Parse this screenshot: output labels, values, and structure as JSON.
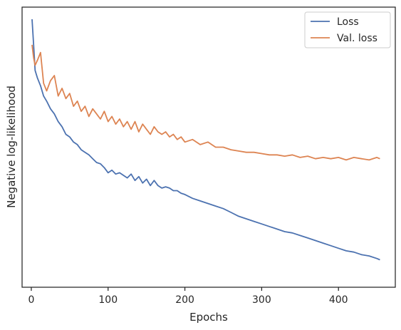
{
  "chart_data": {
    "type": "line",
    "title": "",
    "xlabel": "Epochs",
    "ylabel": "Negative log-likelihood",
    "xlim": [
      -12,
      474
    ],
    "ylim": [
      0,
      1
    ],
    "xticks": [
      0,
      100,
      200,
      300,
      400
    ],
    "yticks_shown": false,
    "grid": false,
    "legend_position": "top-right",
    "colors": {
      "Loss": "#4c72b0",
      "Val. loss": "#dd8452"
    },
    "series": [
      {
        "name": "Loss",
        "x": [
          1,
          3,
          5,
          8,
          12,
          16,
          20,
          25,
          30,
          35,
          40,
          45,
          50,
          55,
          60,
          65,
          70,
          75,
          80,
          85,
          90,
          95,
          100,
          105,
          110,
          115,
          120,
          125,
          130,
          135,
          140,
          145,
          150,
          155,
          160,
          165,
          170,
          175,
          180,
          185,
          190,
          195,
          200,
          210,
          220,
          230,
          240,
          250,
          260,
          270,
          280,
          290,
          300,
          310,
          320,
          330,
          340,
          350,
          360,
          370,
          380,
          390,
          400,
          410,
          420,
          430,
          440,
          450,
          454
        ],
        "y": [
          1.0,
          0.9,
          0.8,
          0.77,
          0.74,
          0.7,
          0.68,
          0.65,
          0.63,
          0.6,
          0.58,
          0.55,
          0.54,
          0.52,
          0.51,
          0.49,
          0.48,
          0.47,
          0.455,
          0.44,
          0.435,
          0.42,
          0.4,
          0.41,
          0.395,
          0.4,
          0.39,
          0.38,
          0.395,
          0.37,
          0.385,
          0.36,
          0.375,
          0.35,
          0.37,
          0.35,
          0.34,
          0.345,
          0.34,
          0.33,
          0.33,
          0.32,
          0.315,
          0.3,
          0.29,
          0.28,
          0.27,
          0.26,
          0.245,
          0.23,
          0.22,
          0.21,
          0.2,
          0.19,
          0.18,
          0.17,
          0.165,
          0.155,
          0.145,
          0.135,
          0.125,
          0.115,
          0.105,
          0.095,
          0.09,
          0.08,
          0.075,
          0.065,
          0.06
        ]
      },
      {
        "name": "Val. loss",
        "x": [
          1,
          3,
          5,
          8,
          12,
          16,
          20,
          25,
          30,
          35,
          40,
          45,
          50,
          55,
          60,
          65,
          70,
          75,
          80,
          85,
          90,
          95,
          100,
          105,
          110,
          115,
          120,
          125,
          130,
          135,
          140,
          145,
          150,
          155,
          160,
          165,
          170,
          175,
          180,
          185,
          190,
          195,
          200,
          210,
          220,
          230,
          240,
          250,
          260,
          270,
          280,
          290,
          300,
          310,
          320,
          330,
          340,
          350,
          360,
          370,
          380,
          390,
          400,
          410,
          420,
          430,
          440,
          450,
          454
        ],
        "y": [
          0.9,
          0.85,
          0.82,
          0.84,
          0.87,
          0.75,
          0.72,
          0.76,
          0.78,
          0.7,
          0.73,
          0.69,
          0.71,
          0.66,
          0.68,
          0.64,
          0.66,
          0.62,
          0.65,
          0.63,
          0.61,
          0.64,
          0.6,
          0.62,
          0.59,
          0.61,
          0.58,
          0.6,
          0.57,
          0.6,
          0.56,
          0.59,
          0.57,
          0.55,
          0.58,
          0.56,
          0.55,
          0.56,
          0.54,
          0.55,
          0.53,
          0.54,
          0.52,
          0.53,
          0.51,
          0.52,
          0.5,
          0.5,
          0.49,
          0.485,
          0.48,
          0.48,
          0.475,
          0.47,
          0.47,
          0.465,
          0.47,
          0.46,
          0.465,
          0.455,
          0.46,
          0.455,
          0.46,
          0.45,
          0.46,
          0.455,
          0.45,
          0.46,
          0.455
        ]
      }
    ]
  }
}
